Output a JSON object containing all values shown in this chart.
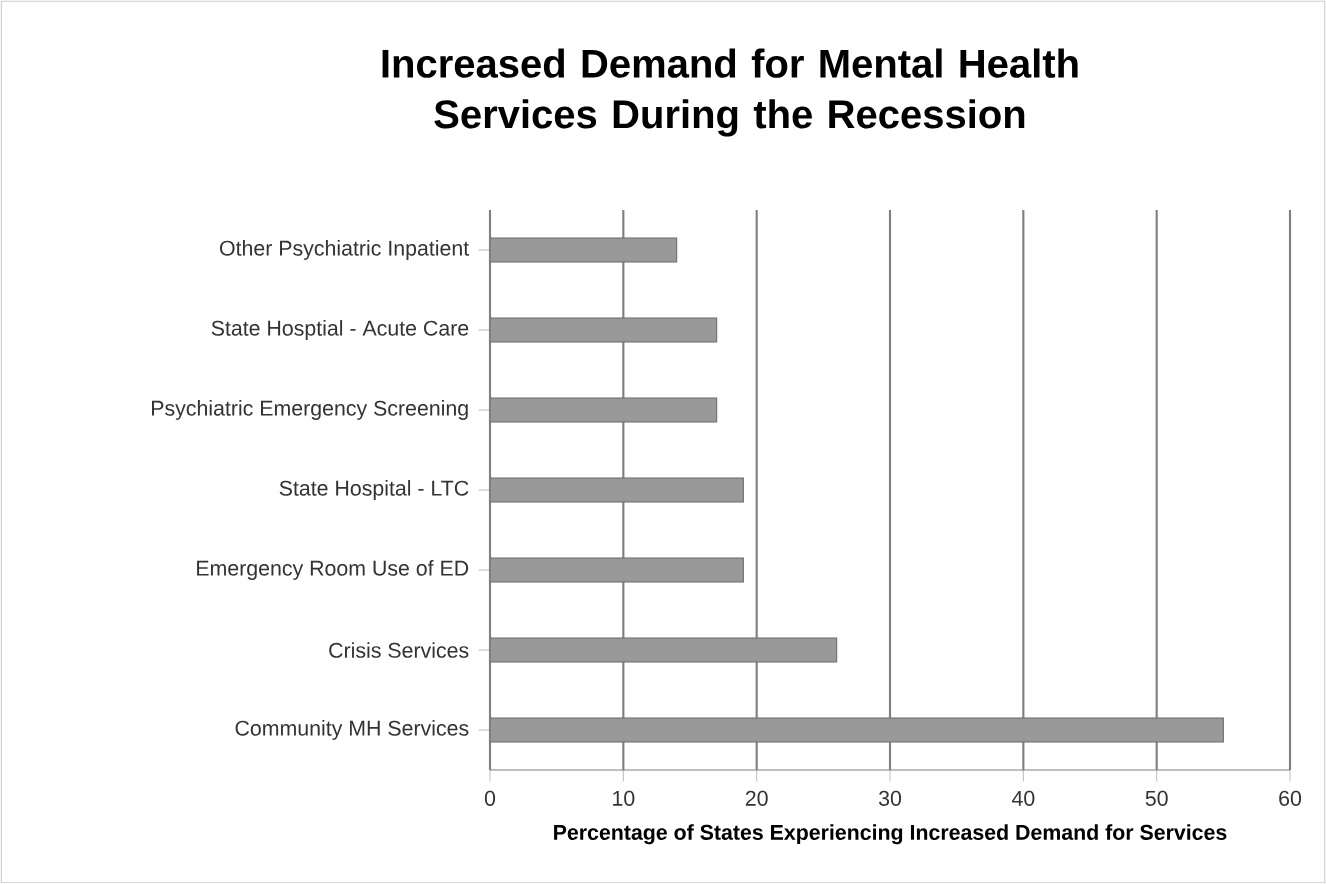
{
  "chart_data": {
    "type": "bar",
    "orientation": "horizontal",
    "title": "Increased Demand for Mental Health Services During the Recession",
    "xlabel": "Percentage of States Experiencing Increased Demand for Services",
    "categories": [
      "Other Psychiatric Inpatient",
      "State Hosptial - Acute Care",
      "Psychiatric Emergency Screening",
      "State Hospital - LTC",
      "Emergency Room Use of ED",
      "Crisis Services",
      "Community MH Services"
    ],
    "values": [
      14,
      17,
      17,
      19,
      19,
      26,
      55
    ],
    "color": "#999999",
    "xlim": [
      0,
      60
    ],
    "xticks": [
      0,
      10,
      20,
      30,
      40,
      50,
      60
    ],
    "grid": "x"
  }
}
